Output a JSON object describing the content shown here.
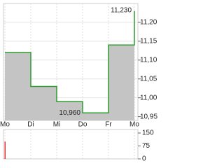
{
  "chart_data": {
    "type": "step-area",
    "categories": [
      "Mo",
      "Di",
      "Mi",
      "Do",
      "Fr",
      "Mo"
    ],
    "series": [
      {
        "color": "#2e9b2e",
        "values": [
          11.12,
          11.03,
          10.99,
          10.96,
          11.14,
          11.23
        ]
      }
    ],
    "fill": "#c4c4c4",
    "ylim": [
      10.94,
      11.25
    ],
    "yticks": [
      {
        "value": 10.95,
        "label": "10,95"
      },
      {
        "value": 11.0,
        "label": "11,00"
      },
      {
        "value": 11.05,
        "label": "11,05"
      },
      {
        "value": 11.1,
        "label": "11,10"
      },
      {
        "value": 11.15,
        "label": "11,15"
      },
      {
        "value": 11.2,
        "label": "11,20"
      }
    ],
    "annotations": [
      {
        "value": 11.23,
        "label": "11,230"
      },
      {
        "value": 10.96,
        "label": "10,960"
      }
    ],
    "grid": true,
    "volume": {
      "color": "#e03030",
      "values": [
        100,
        null,
        null,
        null,
        null,
        null
      ],
      "ylim": [
        0,
        150
      ],
      "yticks": [
        0,
        75,
        150
      ]
    }
  }
}
